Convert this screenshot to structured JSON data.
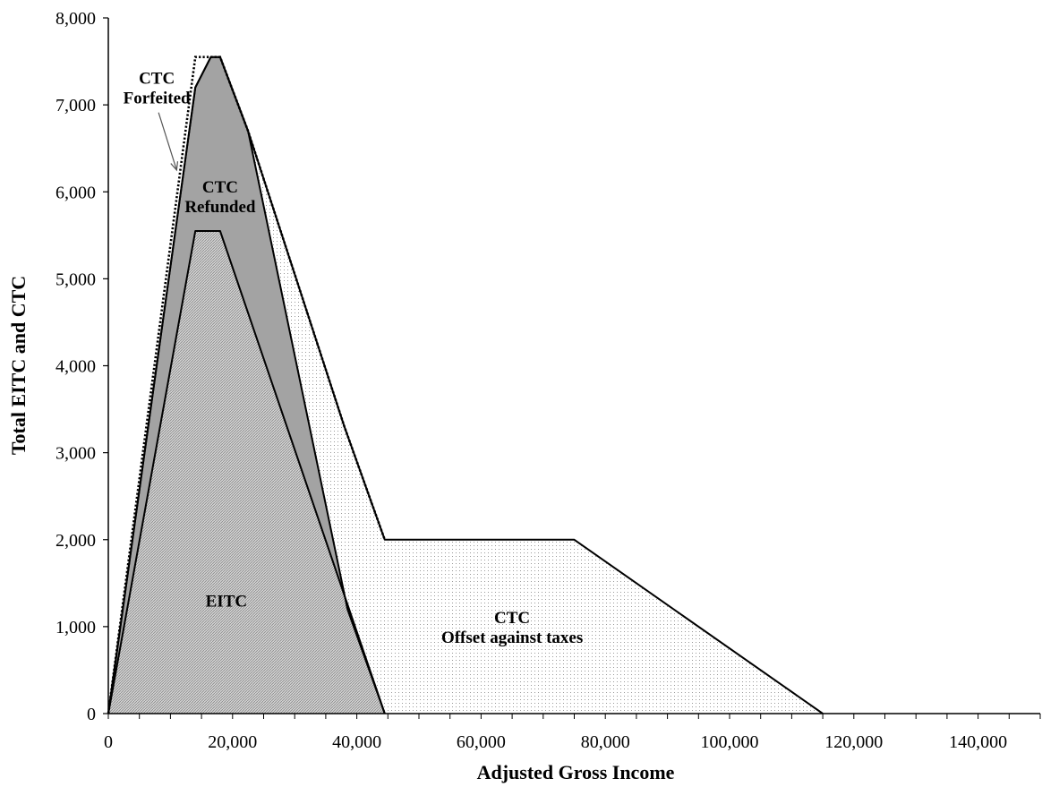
{
  "chart_data": {
    "type": "area",
    "title": "",
    "xlabel": "Adjusted Gross Income",
    "ylabel": "Total EITC and CTC",
    "xlim": [
      0,
      150000
    ],
    "ylim": [
      0,
      8000
    ],
    "x_ticks": [
      "0",
      "20,000",
      "40,000",
      "60,000",
      "80,000",
      "100,000",
      "120,000",
      "140,000"
    ],
    "x_tick_values": [
      0,
      20000,
      40000,
      60000,
      80000,
      100000,
      120000,
      140000
    ],
    "y_ticks": [
      "0",
      "1,000",
      "2,000",
      "3,000",
      "4,000",
      "5,000",
      "6,000",
      "7,000",
      "8,000"
    ],
    "y_tick_values": [
      0,
      1000,
      2000,
      3000,
      4000,
      5000,
      6000,
      7000,
      8000
    ],
    "grid": false,
    "legend": "none",
    "series": [
      {
        "name": "CTC Forfeited",
        "style": "dotted-outline",
        "points": [
          [
            0,
            0
          ],
          [
            14000,
            7550
          ],
          [
            18000,
            7550
          ],
          [
            22500,
            6700
          ],
          [
            38000,
            3300
          ],
          [
            44500,
            2000
          ]
        ]
      },
      {
        "name": "CTC Offset against taxes",
        "style": "dotted-fill",
        "points": [
          [
            0,
            0
          ],
          [
            14000,
            7200
          ],
          [
            16500,
            7550
          ],
          [
            18000,
            7550
          ],
          [
            22500,
            6700
          ],
          [
            38000,
            3300
          ],
          [
            44500,
            2000
          ],
          [
            75000,
            2000
          ],
          [
            115000,
            0
          ]
        ]
      },
      {
        "name": "CTC Refunded",
        "style": "dark-gray-fill",
        "points": [
          [
            0,
            0
          ],
          [
            14000,
            7200
          ],
          [
            16500,
            7550
          ],
          [
            18000,
            7550
          ],
          [
            22500,
            6700
          ],
          [
            38500,
            1200
          ],
          [
            44500,
            0
          ]
        ]
      },
      {
        "name": "EITC",
        "style": "hatched-fill",
        "points": [
          [
            0,
            0
          ],
          [
            14000,
            5550
          ],
          [
            18000,
            5550
          ],
          [
            44500,
            0
          ]
        ]
      }
    ],
    "annotations": [
      {
        "lines": [
          "CTC",
          "Forfeited"
        ],
        "x": 7800,
        "y": 7200,
        "arrow_to": [
          11000,
          6250
        ]
      },
      {
        "lines": [
          "CTC",
          "Refunded"
        ],
        "x": 18000,
        "y": 5950
      },
      {
        "lines": [
          "EITC"
        ],
        "x": 19000,
        "y": 1300
      },
      {
        "lines": [
          "CTC",
          "Offset against taxes"
        ],
        "x": 65000,
        "y": 1000
      }
    ]
  }
}
